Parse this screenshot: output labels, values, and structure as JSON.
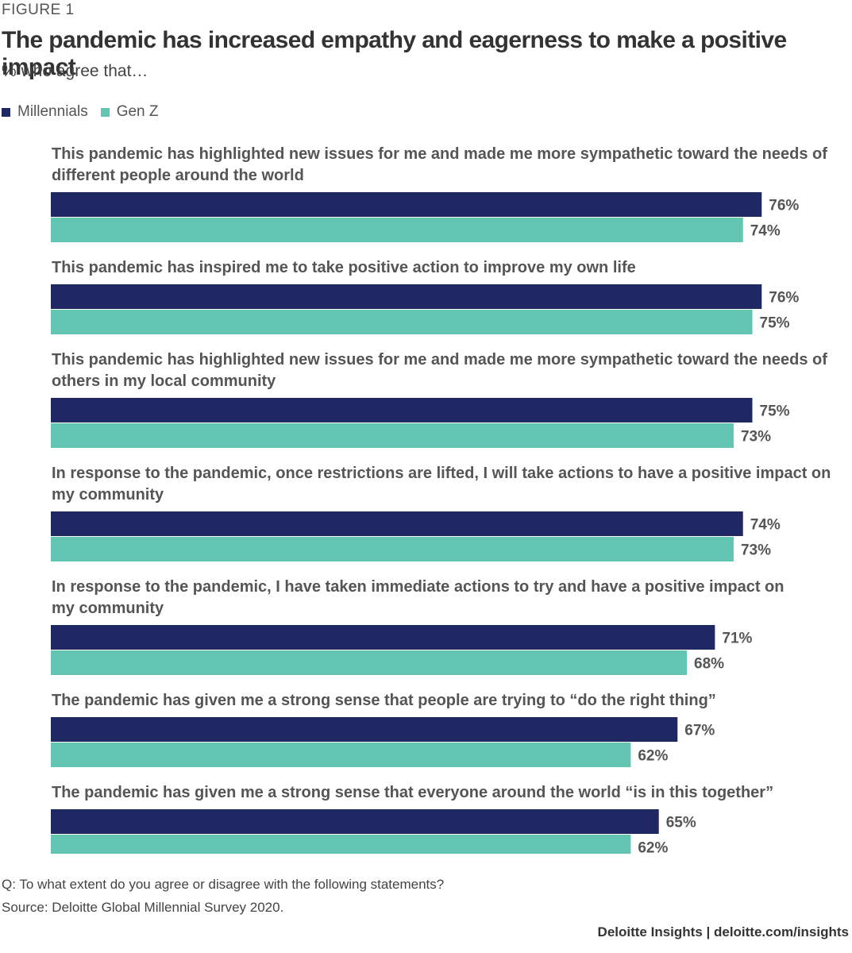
{
  "figure_label": "FIGURE 1",
  "colors": {
    "millennials": "#202863",
    "genz": "#62C5B1"
  },
  "chart_data": {
    "type": "bar",
    "orientation": "horizontal",
    "title": "The pandemic has increased empathy and eagerness to make a positive impact",
    "subtitle": "% who agree that…",
    "legend_position": "top-left",
    "grid": false,
    "xlim": [
      0,
      80
    ],
    "categories": [
      [
        "This pandemic has highlighted new issues for me and made me more sympathetic toward the needs of",
        "different people around the world"
      ],
      [
        "This pandemic has inspired me to take positive action to improve my own life"
      ],
      [
        "This pandemic has highlighted new issues for me and made me more sympathetic toward the needs of",
        "others in my local community"
      ],
      [
        "In response to the pandemic, once restrictions are lifted, I will take actions to have a positive impact on",
        "my community"
      ],
      [
        "In response to the pandemic, I have taken immediate actions to try and have a positive impact on",
        "my community"
      ],
      [
        "The pandemic has given me a strong sense that people are trying to “do the right thing”"
      ],
      [
        "The pandemic has given me a strong sense that everyone around the world “is in this together”"
      ]
    ],
    "series": [
      {
        "name": "Millennials",
        "values": [
          76,
          76,
          75,
          74,
          71,
          67,
          65
        ],
        "labels": [
          "76%",
          "76%",
          "75%",
          "74%",
          "71%",
          "67%",
          "65%"
        ]
      },
      {
        "name": "Gen Z",
        "values": [
          74,
          75,
          73,
          73,
          68,
          62,
          62
        ],
        "labels": [
          "74%",
          "75%",
          "73%",
          "73%",
          "68%",
          "62%",
          "62%"
        ]
      }
    ]
  },
  "footer": {
    "question": "Q: To what extent do you agree or disagree with the following statements?",
    "source": "Source: Deloitte Global Millennial Survey 2020.",
    "brand": "Deloitte Insights | deloitte.com/insights"
  }
}
